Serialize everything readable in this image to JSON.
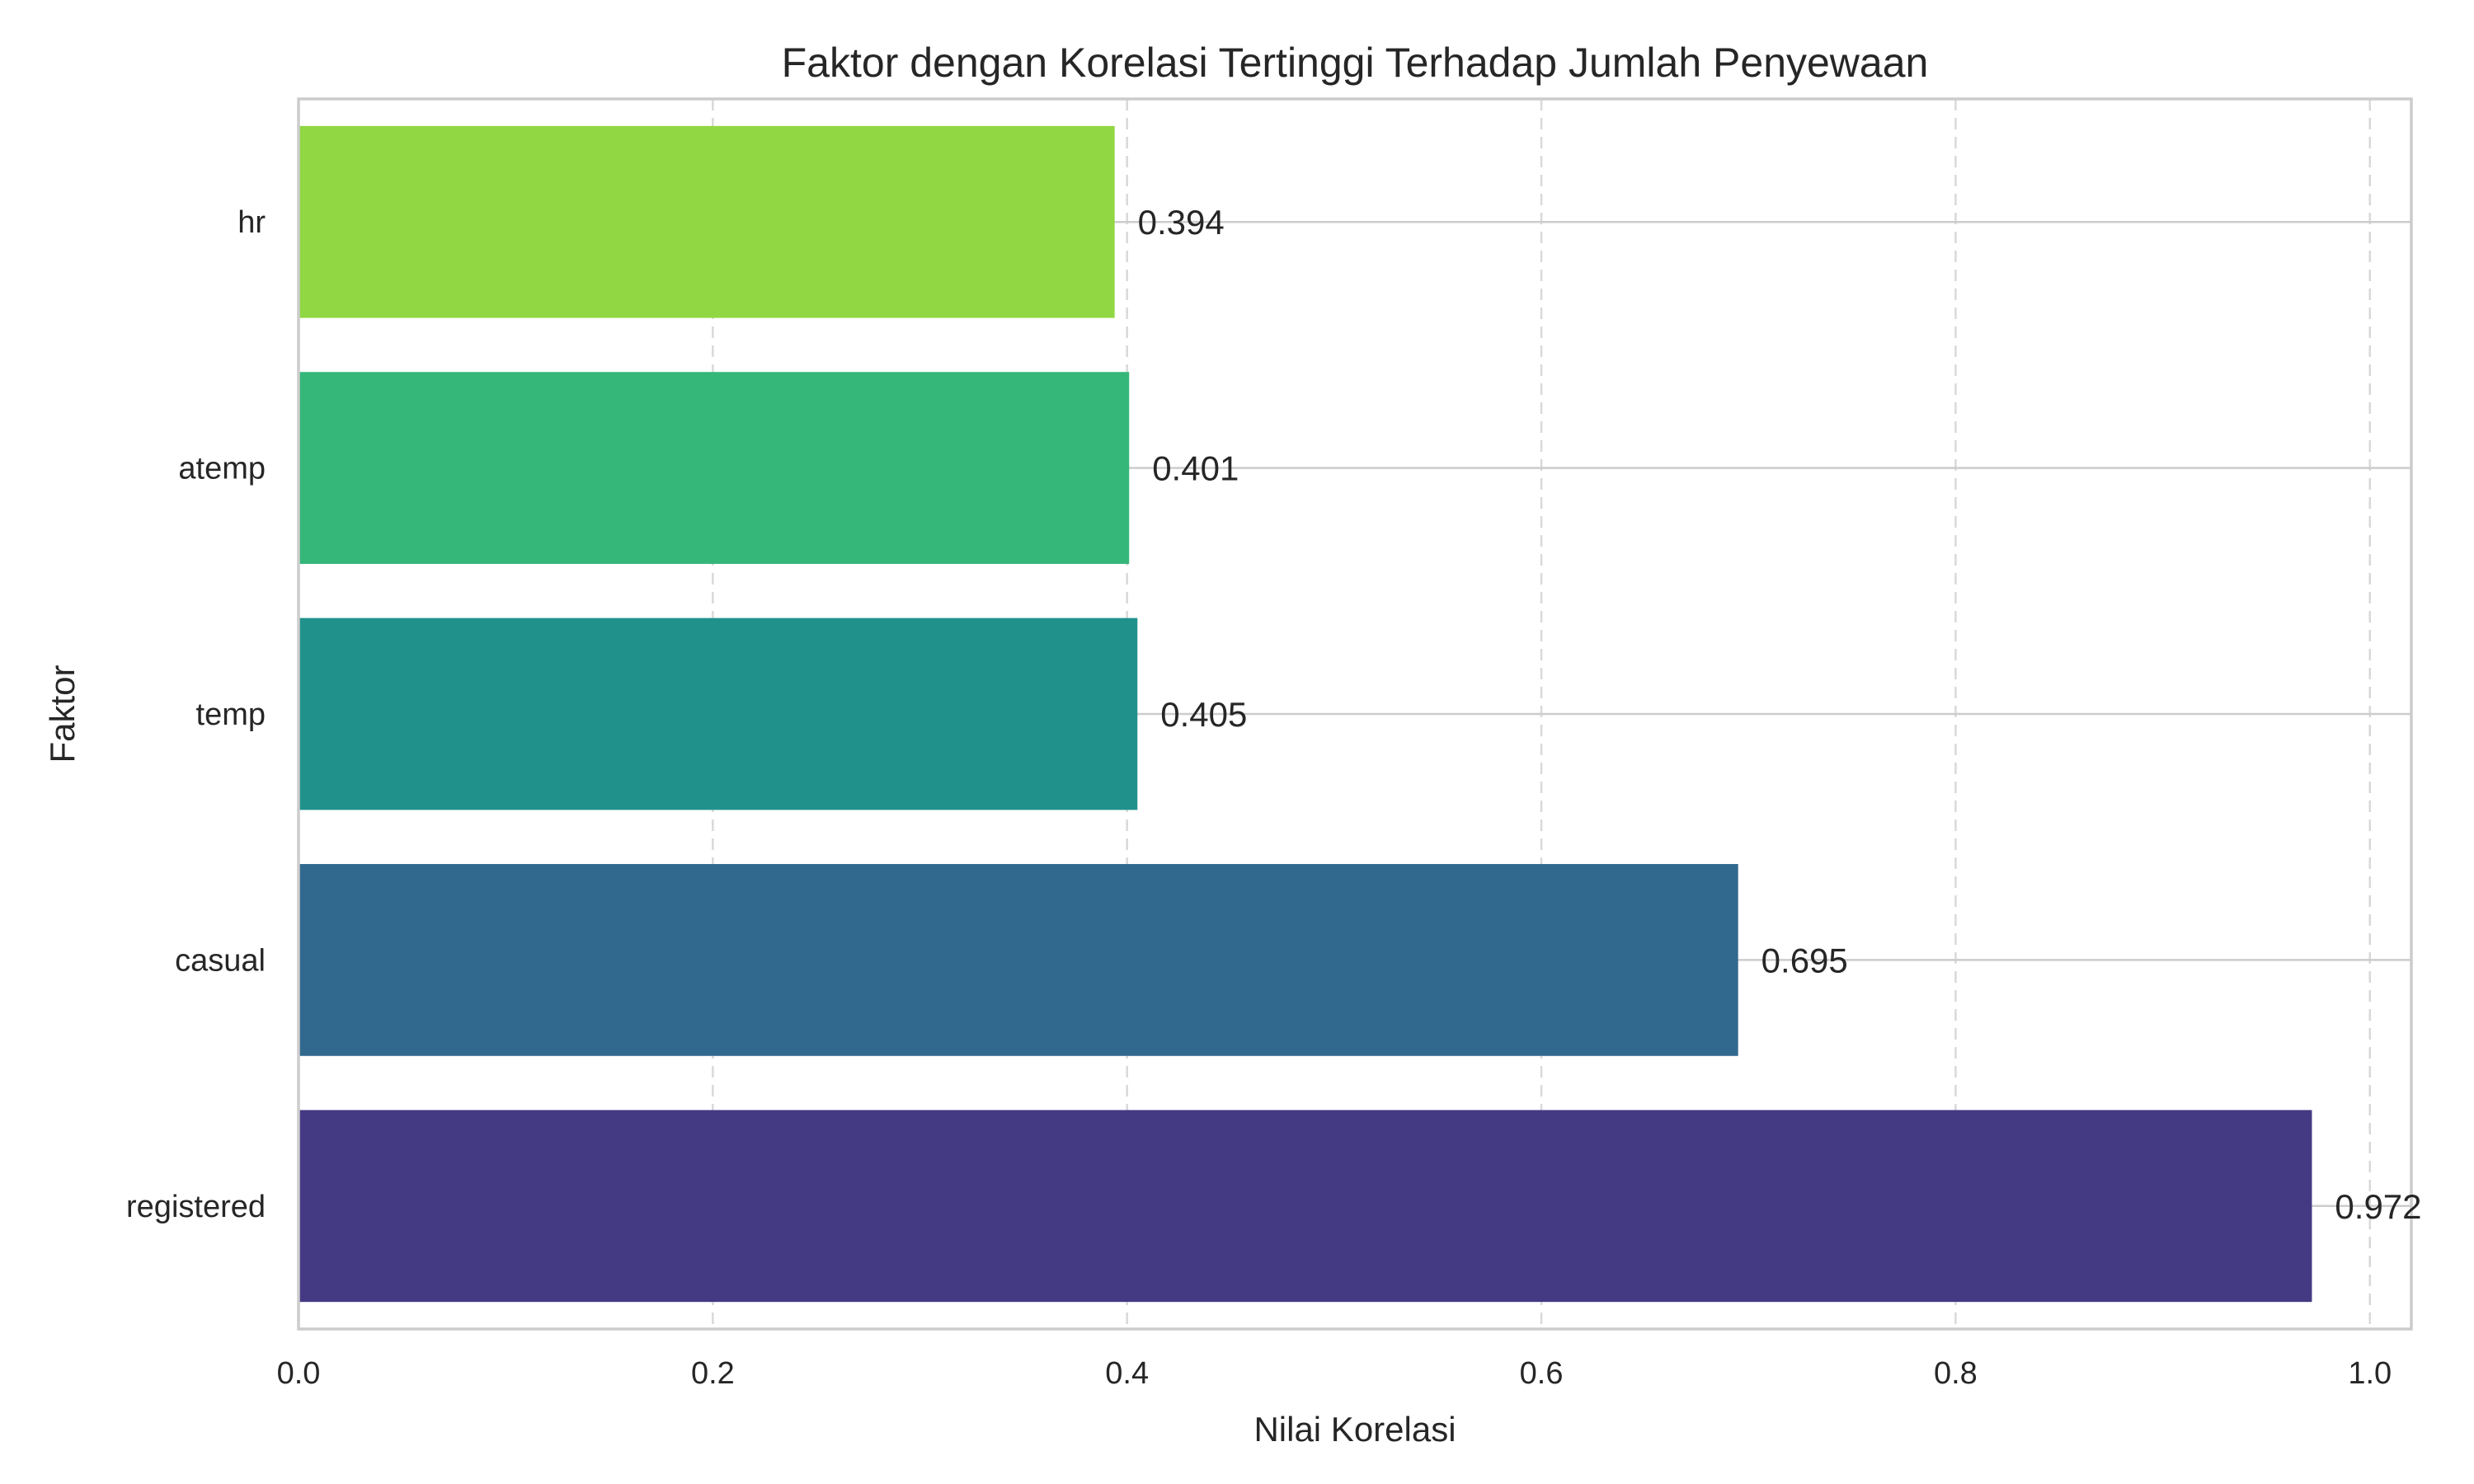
{
  "chart_data": {
    "type": "bar",
    "orientation": "horizontal",
    "title": "Faktor dengan Korelasi Tertinggi Terhadap Jumlah Penyewaan",
    "xlabel": "Nilai Korelasi",
    "ylabel": "Faktor",
    "categories": [
      "registered",
      "casual",
      "temp",
      "atemp",
      "hr"
    ],
    "values": [
      0.972,
      0.695,
      0.405,
      0.401,
      0.394
    ],
    "value_labels": [
      "0.972",
      "0.695",
      "0.405",
      "0.401",
      "0.394"
    ],
    "colors": [
      "#443983",
      "#31688e",
      "#21918c",
      "#35b779",
      "#90d743"
    ],
    "xlim": [
      0,
      1.02
    ],
    "xticks": [
      0.0,
      0.2,
      0.4,
      0.6,
      0.8,
      1.0
    ],
    "xtick_labels": [
      "0.0",
      "0.2",
      "0.4",
      "0.6",
      "0.8",
      "1.0"
    ],
    "grid": true,
    "legend": false
  }
}
